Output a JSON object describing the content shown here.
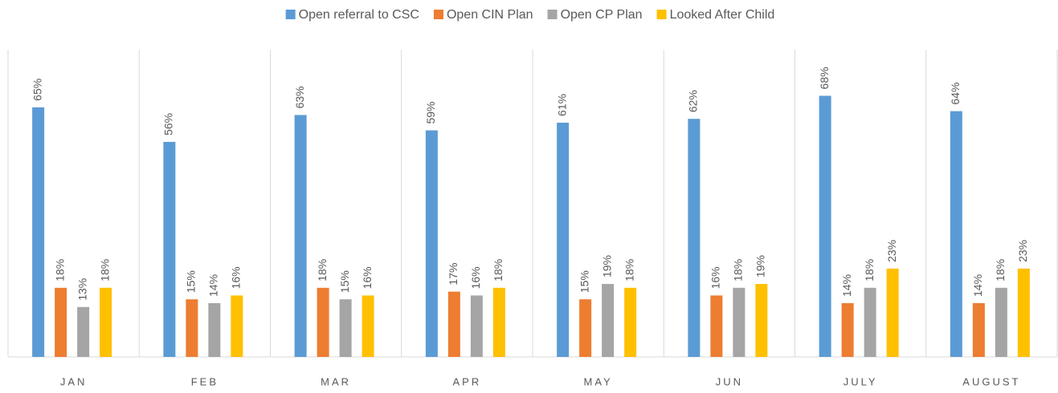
{
  "chart_data": {
    "type": "bar",
    "categories": [
      "JAN",
      "FEB",
      "MAR",
      "APR",
      "MAY",
      "JUN",
      "JULY",
      "AUGUST"
    ],
    "series": [
      {
        "name": "Open referral to CSC",
        "color": "#5b9bd5",
        "values": [
          65,
          56,
          63,
          59,
          61,
          62,
          68,
          64
        ],
        "value_labels": [
          "65%",
          "56%",
          "63%",
          "59%",
          "61%",
          "62%",
          "68%",
          "64%"
        ]
      },
      {
        "name": "Open CIN Plan",
        "color": "#ed7d31",
        "values": [
          18,
          15,
          18,
          17,
          15,
          16,
          14,
          14
        ],
        "value_labels": [
          "18%",
          "15%",
          "18%",
          "17%",
          "15%",
          "16%",
          "14%",
          "14%"
        ]
      },
      {
        "name": "Open CP Plan",
        "color": "#a5a5a5",
        "values": [
          13,
          14,
          15,
          16,
          19,
          18,
          18,
          18
        ],
        "value_labels": [
          "13%",
          "14%",
          "15%",
          "16%",
          "19%",
          "18%",
          "18%",
          "18%"
        ]
      },
      {
        "name": "Looked After Child",
        "color": "#ffc000",
        "values": [
          18,
          16,
          16,
          18,
          18,
          19,
          23,
          23
        ],
        "value_labels": [
          "18%",
          "16%",
          "16%",
          "18%",
          "18%",
          "19%",
          "23%",
          "23%"
        ]
      }
    ],
    "ylim": [
      0,
      80
    ],
    "legend": "top"
  }
}
